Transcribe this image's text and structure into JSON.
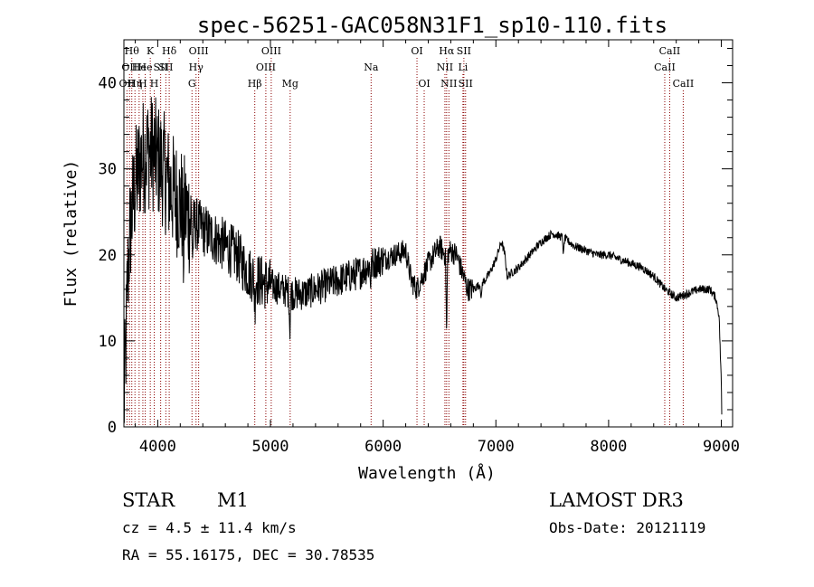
{
  "chart_data": {
    "type": "line",
    "title": "spec-56251-GAC058N31F1_sp10-110.fits",
    "xlabel": "Wavelength (Å)",
    "ylabel": "Flux (relative)",
    "xlim": [
      3700,
      9100
    ],
    "ylim": [
      0,
      45
    ],
    "x_ticks": [
      {
        "value": 4000,
        "label": "4000"
      },
      {
        "value": 5000,
        "label": "5000"
      },
      {
        "value": 6000,
        "label": "6000"
      },
      {
        "value": 7000,
        "label": "7000"
      },
      {
        "value": 8000,
        "label": "8000"
      },
      {
        "value": 9000,
        "label": "9000"
      }
    ],
    "y_ticks": [
      {
        "value": 0,
        "label": "0"
      },
      {
        "value": 10,
        "label": "10"
      },
      {
        "value": 20,
        "label": "20"
      },
      {
        "value": 30,
        "label": "30"
      },
      {
        "value": 40,
        "label": "40"
      }
    ],
    "line_color": "#000000",
    "marker_color": "#8b0000",
    "spectrum_anchors": [
      [
        3700,
        2
      ],
      [
        3715,
        8
      ],
      [
        3730,
        16
      ],
      [
        3750,
        22
      ],
      [
        3780,
        26
      ],
      [
        3800,
        28
      ],
      [
        3850,
        31
      ],
      [
        3900,
        32
      ],
      [
        3950,
        32
      ],
      [
        4000,
        31
      ],
      [
        4050,
        30
      ],
      [
        4100,
        28
      ],
      [
        4150,
        27
      ],
      [
        4200,
        26
      ],
      [
        4250,
        25
      ],
      [
        4300,
        24
      ],
      [
        4400,
        23
      ],
      [
        4500,
        22
      ],
      [
        4600,
        21
      ],
      [
        4700,
        20
      ],
      [
        4800,
        18
      ],
      [
        4900,
        17
      ],
      [
        5000,
        16.5
      ],
      [
        5100,
        16
      ],
      [
        5200,
        15.5
      ],
      [
        5300,
        15.5
      ],
      [
        5400,
        16
      ],
      [
        5500,
        16.5
      ],
      [
        5600,
        17
      ],
      [
        5700,
        17.5
      ],
      [
        5800,
        18
      ],
      [
        5900,
        19
      ],
      [
        6000,
        19.5
      ],
      [
        6100,
        20
      ],
      [
        6200,
        20.5
      ],
      [
        6250,
        17
      ],
      [
        6300,
        16
      ],
      [
        6350,
        17.5
      ],
      [
        6400,
        19
      ],
      [
        6450,
        20
      ],
      [
        6500,
        21
      ],
      [
        6550,
        20
      ],
      [
        6600,
        20.5
      ],
      [
        6650,
        20
      ],
      [
        6700,
        18
      ],
      [
        6750,
        16
      ],
      [
        6800,
        16
      ],
      [
        6900,
        17
      ],
      [
        6950,
        18
      ],
      [
        7000,
        19.5
      ],
      [
        7050,
        21.5
      ],
      [
        7080,
        20
      ],
      [
        7100,
        17.5
      ],
      [
        7150,
        18
      ],
      [
        7200,
        18.5
      ],
      [
        7300,
        20
      ],
      [
        7400,
        21.5
      ],
      [
        7500,
        22.5
      ],
      [
        7600,
        22
      ],
      [
        7700,
        21
      ],
      [
        7800,
        20.5
      ],
      [
        7900,
        20
      ],
      [
        8000,
        20
      ],
      [
        8100,
        19.5
      ],
      [
        8200,
        19
      ],
      [
        8300,
        18.5
      ],
      [
        8400,
        17.5
      ],
      [
        8500,
        16
      ],
      [
        8600,
        15
      ],
      [
        8700,
        15.5
      ],
      [
        8800,
        16
      ],
      [
        8900,
        16
      ],
      [
        8950,
        15
      ],
      [
        8980,
        13
      ],
      [
        9000,
        5
      ],
      [
        9005,
        0.5
      ]
    ],
    "absorption_dips": [
      {
        "x": 4227,
        "depth": 5
      },
      {
        "x": 4310,
        "depth": 4
      },
      {
        "x": 4861,
        "depth": 3
      },
      {
        "x": 5172,
        "depth": 4
      },
      {
        "x": 5890,
        "depth": 2
      },
      {
        "x": 6563,
        "depth": 9
      },
      {
        "x": 6870,
        "depth": 2
      },
      {
        "x": 7600,
        "depth": 2
      }
    ],
    "lines": [
      {
        "wave": 3727,
        "label": "OII",
        "row": 2
      },
      {
        "wave": 3750,
        "label": "OII",
        "row": 1
      },
      {
        "wave": 3770,
        "label": "Hθ",
        "row": 0
      },
      {
        "wave": 3798,
        "label": "Hη",
        "row": 2
      },
      {
        "wave": 3835,
        "label": "He",
        "row": 1
      },
      {
        "wave": 3868,
        "label": "H",
        "row": 2
      },
      {
        "wave": 3889,
        "label": "He",
        "row": 1
      },
      {
        "wave": 3934,
        "label": "K",
        "row": 0
      },
      {
        "wave": 3969,
        "label": "H",
        "row": 2
      },
      {
        "wave": 4026,
        "label": "SII",
        "row": 1
      },
      {
        "wave": 4072,
        "label": "SII",
        "row": 1
      },
      {
        "wave": 4102,
        "label": "Hδ",
        "row": 0
      },
      {
        "wave": 4304,
        "label": "G",
        "row": 2
      },
      {
        "wave": 4340,
        "label": "Hγ",
        "row": 1
      },
      {
        "wave": 4363,
        "label": "OIII",
        "row": 0
      },
      {
        "wave": 4861,
        "label": "Hβ",
        "row": 2
      },
      {
        "wave": 4959,
        "label": "OIII",
        "row": 1
      },
      {
        "wave": 5007,
        "label": "OIII",
        "row": 0
      },
      {
        "wave": 5175,
        "label": "Mg",
        "row": 2
      },
      {
        "wave": 5893,
        "label": "Na",
        "row": 1
      },
      {
        "wave": 6300,
        "label": "OI",
        "row": 0
      },
      {
        "wave": 6364,
        "label": "OI",
        "row": 2
      },
      {
        "wave": 6548,
        "label": "NII",
        "row": 1
      },
      {
        "wave": 6563,
        "label": "Hα",
        "row": 0
      },
      {
        "wave": 6583,
        "label": "NII",
        "row": 2
      },
      {
        "wave": 6708,
        "label": "Li",
        "row": 1
      },
      {
        "wave": 6716,
        "label": "SII",
        "row": 0
      },
      {
        "wave": 6731,
        "label": "SII",
        "row": 2
      },
      {
        "wave": 8498,
        "label": "CaII",
        "row": 1
      },
      {
        "wave": 8542,
        "label": "CaII",
        "row": 0
      },
      {
        "wave": 8662,
        "label": "CaII",
        "row": 2
      }
    ]
  },
  "info": {
    "class_label": "STAR",
    "subclass_label": "M1",
    "survey": "LAMOST DR3",
    "cz": "cz = 4.5 ± 11.4 km/s",
    "obs_date": "Obs-Date: 20121119",
    "coords": "RA =  55.16175, DEC =  30.78535"
  }
}
